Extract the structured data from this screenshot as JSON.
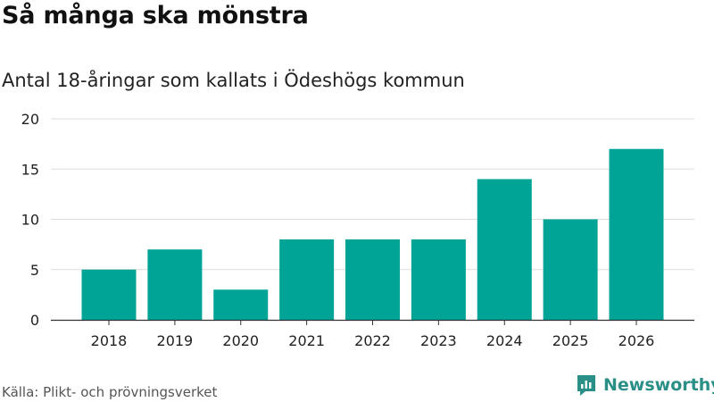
{
  "title": "Så många ska mönstra",
  "subtitle": "Antal 18-åringar som kallats i Ödeshögs kommun",
  "source": "Källa: Plikt- och prövningsverket",
  "brand": {
    "name": "Newsworthy",
    "icon": "newsworthy-logo-icon"
  },
  "colors": {
    "bar": "#00a497",
    "grid": "#dddddd",
    "axis": "#333333",
    "brand": "#2a8f86"
  },
  "chart_data": {
    "type": "bar",
    "title": "Så många ska mönstra",
    "subtitle": "Antal 18-åringar som kallats i Ödeshögs kommun",
    "xlabel": "",
    "ylabel": "",
    "categories": [
      "2018",
      "2019",
      "2020",
      "2021",
      "2022",
      "2023",
      "2024",
      "2025",
      "2026"
    ],
    "values": [
      5,
      7,
      3,
      8,
      8,
      8,
      14,
      10,
      17
    ],
    "ylim": [
      0,
      20
    ],
    "yticks": [
      "0",
      "5",
      "10",
      "15",
      "20"
    ],
    "grid": true,
    "legend": "none"
  }
}
